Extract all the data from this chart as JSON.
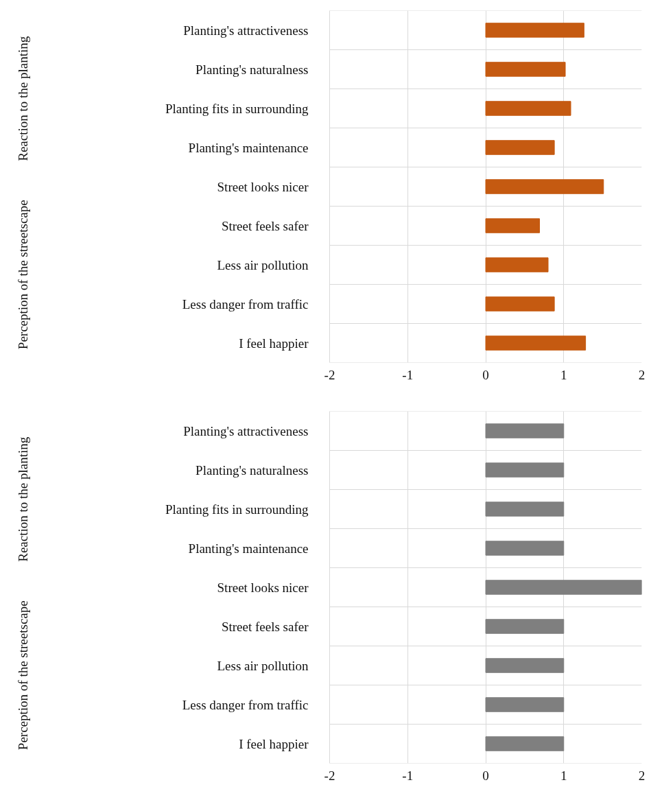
{
  "chart_data": [
    {
      "type": "bar",
      "orientation": "horizontal",
      "categories": [
        "Planting's attractiveness",
        "Planting's naturalness",
        "Planting fits in surrounding",
        "Planting's maintenance",
        "Street looks nicer",
        "Street feels safer",
        "Less air pollution",
        "Less danger from traffic",
        "I feel happier"
      ],
      "values": [
        1.26,
        1.02,
        1.09,
        0.88,
        1.51,
        0.69,
        0.8,
        0.88,
        1.28
      ],
      "color": "#c55a11",
      "xlim": [
        -2,
        2
      ],
      "xticks": [
        -2,
        -1,
        0,
        1,
        2
      ],
      "grid": "x",
      "annotations": [
        "Reaction to the planting",
        "Perception of the streetscape"
      ]
    },
    {
      "type": "bar",
      "orientation": "horizontal",
      "categories": [
        "Planting's attractiveness",
        "Planting's naturalness",
        "Planting fits in surrounding",
        "Planting's maintenance",
        "Street looks nicer",
        "Street feels safer",
        "Less air pollution",
        "Less danger from traffic",
        "I feel happier"
      ],
      "values": [
        1,
        1,
        1,
        1,
        2,
        1,
        1,
        1,
        1
      ],
      "color": "#7f7f7f",
      "xlim": [
        -2,
        2
      ],
      "xticks": [
        -2,
        -1,
        0,
        1,
        2
      ],
      "grid": "x",
      "annotations": [
        "Reaction to the planting",
        "Perception of the streetscape"
      ]
    }
  ]
}
